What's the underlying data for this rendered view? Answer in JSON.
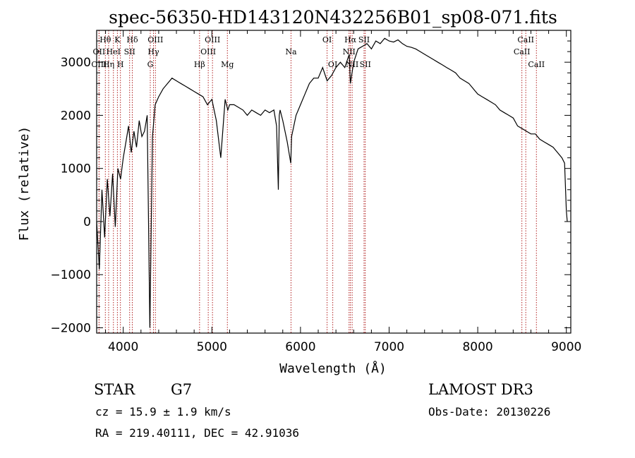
{
  "chart_data": {
    "type": "line",
    "title": "spec-56350-HD143120N432256B01_sp08-071.fits",
    "xlabel": "Wavelength (Å)",
    "ylabel": "Flux (relative)",
    "xlim": [
      3700,
      9050
    ],
    "ylim": [
      -2100,
      3600
    ],
    "x_ticks": [
      4000,
      5000,
      6000,
      7000,
      8000,
      9000
    ],
    "x_tick_labels": [
      "4000",
      "5000",
      "6000",
      "7000",
      "8000",
      "9000"
    ],
    "y_ticks": [
      -2000,
      -1000,
      0,
      1000,
      2000,
      3000
    ],
    "y_tick_labels": [
      "−2000",
      "−1000",
      "0",
      "1000",
      "2000",
      "3000"
    ],
    "grid": false,
    "series": [
      {
        "x": [
          3700,
          3730,
          3760,
          3790,
          3820,
          3850,
          3880,
          3910,
          3940,
          3970,
          4000,
          4030,
          4060,
          4090,
          4120,
          4150,
          4180,
          4210,
          4240,
          4270,
          4300,
          4330,
          4360,
          4400,
          4450,
          4500,
          4550,
          4600,
          4650,
          4700,
          4750,
          4800,
          4850,
          4900,
          4950,
          5000,
          5050,
          5100,
          5150,
          5180,
          5200,
          5250,
          5300,
          5350,
          5400,
          5450,
          5500,
          5550,
          5600,
          5650,
          5700,
          5730,
          5750,
          5760,
          5770,
          5800,
          5850,
          5890,
          5900,
          5950,
          6000,
          6050,
          6100,
          6150,
          6200,
          6250,
          6300,
          6350,
          6400,
          6450,
          6500,
          6550,
          6563,
          6600,
          6650,
          6700,
          6750,
          6800,
          6850,
          6900,
          6950,
          7000,
          7050,
          7100,
          7150,
          7200,
          7250,
          7300,
          7350,
          7400,
          7450,
          7500,
          7550,
          7600,
          7650,
          7700,
          7750,
          7800,
          7850,
          7900,
          7950,
          8000,
          8050,
          8100,
          8150,
          8200,
          8250,
          8300,
          8350,
          8400,
          8450,
          8500,
          8550,
          8600,
          8650,
          8700,
          8750,
          8800,
          8850,
          8900,
          8950,
          8980,
          9000,
          9010
        ],
        "y": [
          0,
          -900,
          600,
          -300,
          800,
          100,
          900,
          -100,
          1000,
          800,
          1200,
          1500,
          1800,
          1300,
          1700,
          1400,
          1900,
          1600,
          1700,
          2000,
          -2000,
          1600,
          2200,
          2350,
          2500,
          2600,
          2700,
          2650,
          2600,
          2550,
          2500,
          2450,
          2400,
          2350,
          2200,
          2300,
          1900,
          1200,
          2300,
          2100,
          2200,
          2200,
          2150,
          2100,
          2000,
          2100,
          2050,
          2000,
          2100,
          2050,
          2100,
          1800,
          600,
          2000,
          2100,
          1900,
          1500,
          1100,
          1600,
          2000,
          2200,
          2400,
          2600,
          2700,
          2700,
          2900,
          2650,
          2750,
          2900,
          3000,
          2900,
          3150,
          2600,
          3000,
          3250,
          3300,
          3350,
          3250,
          3400,
          3350,
          3450,
          3400,
          3380,
          3420,
          3350,
          3300,
          3280,
          3250,
          3200,
          3150,
          3100,
          3050,
          3000,
          2950,
          2900,
          2850,
          2800,
          2700,
          2650,
          2600,
          2500,
          2400,
          2350,
          2300,
          2250,
          2200,
          2100,
          2050,
          2000,
          1950,
          1800,
          1750,
          1700,
          1650,
          1650,
          1550,
          1500,
          1450,
          1400,
          1300,
          1200,
          1100,
          200,
          0
        ]
      }
    ],
    "lines": [
      {
        "label": "Hθ",
        "x": 3798,
        "row": 0
      },
      {
        "label": "OII",
        "x": 3727,
        "row": 1
      },
      {
        "label": "OIII",
        "x": 3727,
        "row": 2
      },
      {
        "label": "Hη",
        "x": 3835,
        "row": 2
      },
      {
        "label": "HeI",
        "x": 3889,
        "row": 1
      },
      {
        "label": "K",
        "x": 3934,
        "row": 0
      },
      {
        "label": "H",
        "x": 3968,
        "row": 2
      },
      {
        "label": "SII",
        "x": 4072,
        "row": 1
      },
      {
        "label": "Hδ",
        "x": 4102,
        "row": 0
      },
      {
        "label": "OIII",
        "x": 4363,
        "row": 0
      },
      {
        "label": "Hγ",
        "x": 4341,
        "row": 1
      },
      {
        "label": "G",
        "x": 4305,
        "row": 2
      },
      {
        "label": "Hβ",
        "x": 4861,
        "row": 2
      },
      {
        "label": "OIII",
        "x": 4959,
        "row": 1
      },
      {
        "label": "OIII",
        "x": 5007,
        "row": 0
      },
      {
        "label": "Mg",
        "x": 5175,
        "row": 2
      },
      {
        "label": "Na",
        "x": 5893,
        "row": 1
      },
      {
        "label": "OI",
        "x": 6300,
        "row": 0
      },
      {
        "label": "OI",
        "x": 6364,
        "row": 2
      },
      {
        "label": "Hα",
        "x": 6563,
        "row": 0
      },
      {
        "label": "NII",
        "x": 6548,
        "row": 1
      },
      {
        "label": "NII",
        "x": 6583,
        "row": 2
      },
      {
        "label": "SII",
        "x": 6717,
        "row": 0
      },
      {
        "label": "SII",
        "x": 6731,
        "row": 2
      },
      {
        "label": "CaII",
        "x": 8542,
        "row": 0
      },
      {
        "label": "CaII",
        "x": 8498,
        "row": 1
      },
      {
        "label": "CaII",
        "x": 8662,
        "row": 2
      }
    ]
  },
  "info": {
    "object_class": "STAR",
    "subclass": "G7",
    "survey": "LAMOST DR3",
    "cz": "cz = 15.9 ± 1.9 km/s",
    "obs_date": "Obs-Date: 20130226",
    "coords": "RA = 219.40111, DEC =  42.91036"
  },
  "colors": {
    "spectrum": "#000000",
    "line_markers": "#b22222",
    "axes": "#000000",
    "background": "#ffffff"
  }
}
